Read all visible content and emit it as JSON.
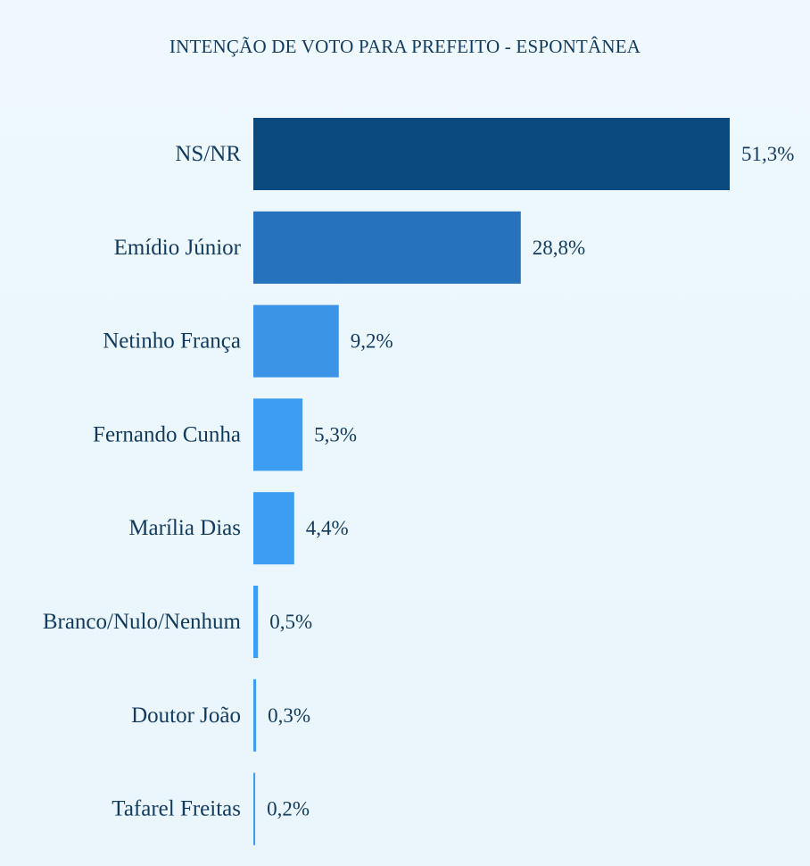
{
  "chart_data": {
    "type": "bar",
    "orientation": "horizontal",
    "title": "INTENÇÃO DE VOTO PARA PREFEITO - ESPONTÂNEA",
    "categories": [
      "NS/NR",
      "Emídio Júnior",
      "Netinho França",
      "Fernando Cunha",
      "Marília Dias",
      "Branco/Nulo/Nenhum",
      "Doutor João",
      "Tafarel Freitas"
    ],
    "values": [
      51.3,
      28.8,
      9.2,
      5.3,
      4.4,
      0.5,
      0.3,
      0.2
    ],
    "value_labels": [
      "51,3%",
      "28,8%",
      "9,2%",
      "5,3%",
      "4,4%",
      "0,5%",
      "0,3%",
      "0,2%"
    ],
    "colors": [
      "#0b4a7f",
      "#2672bd",
      "#3b94e5",
      "#3d9df0",
      "#3d9df0",
      "#3d9df0",
      "#3d9df0",
      "#3d9df0"
    ],
    "xlim": [
      0,
      51.3
    ],
    "grid": false,
    "legend": "none",
    "xlabel": "",
    "ylabel": ""
  }
}
